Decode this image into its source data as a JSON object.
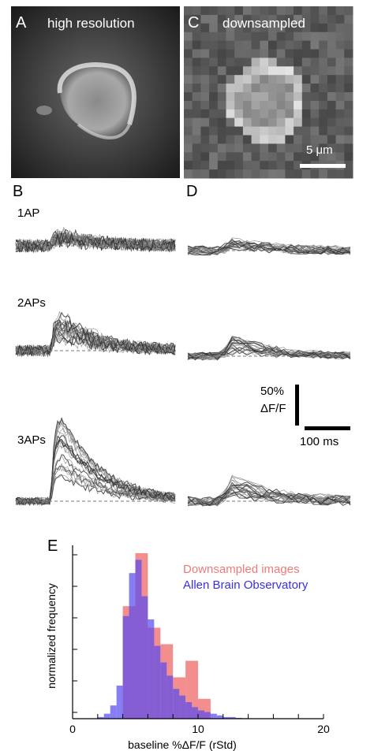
{
  "panels": {
    "a": {
      "letter": "A",
      "label": "high resolution"
    },
    "b": {
      "letter": "B",
      "rows": [
        "1AP",
        "2APs",
        "3APs"
      ]
    },
    "c": {
      "letter": "C",
      "label": "downsampled",
      "scalebar": "5 μm"
    },
    "d": {
      "letter": "D",
      "scale_y_line1": "50%",
      "scale_y_line2": "ΔF/F",
      "scale_x": "100 ms"
    },
    "e": {
      "letter": "E"
    }
  },
  "colors": {
    "downsampled": "#f07a7a",
    "allen": "#5a4cf0",
    "overlap": "#6a2aa0"
  },
  "chart_data": {
    "type": "bar",
    "xlabel": "baseline %ΔF/F (rStd)",
    "ylabel": "normalized frequency",
    "xlim": [
      0,
      20
    ],
    "xticks": [
      "0",
      "10",
      "20"
    ],
    "series": [
      {
        "name": "Downsampled images",
        "bin_starts": [
          3,
          4,
          5,
          6,
          7,
          8,
          9,
          10,
          11,
          12
        ],
        "values": [
          0,
          0.68,
          1.0,
          0.55,
          0.45,
          0.25,
          0.35,
          0.12,
          0,
          0
        ]
      },
      {
        "name": "Allen Brain Observatory",
        "bin_starts": [
          2,
          2.5,
          3,
          3.5,
          4,
          4.5,
          5,
          5.5,
          6,
          6.5,
          7,
          7.5,
          8,
          8.5,
          9,
          9.5,
          10,
          10.5,
          11,
          11.5,
          12,
          12.5,
          13,
          13.5
        ],
        "values": [
          0.01,
          0.03,
          0.08,
          0.2,
          0.62,
          0.88,
          0.96,
          0.74,
          0.6,
          0.44,
          0.34,
          0.26,
          0.18,
          0.14,
          0.1,
          0.07,
          0.05,
          0.04,
          0.03,
          0.02,
          0.01,
          0.01,
          0.005,
          0.003
        ]
      }
    ]
  }
}
